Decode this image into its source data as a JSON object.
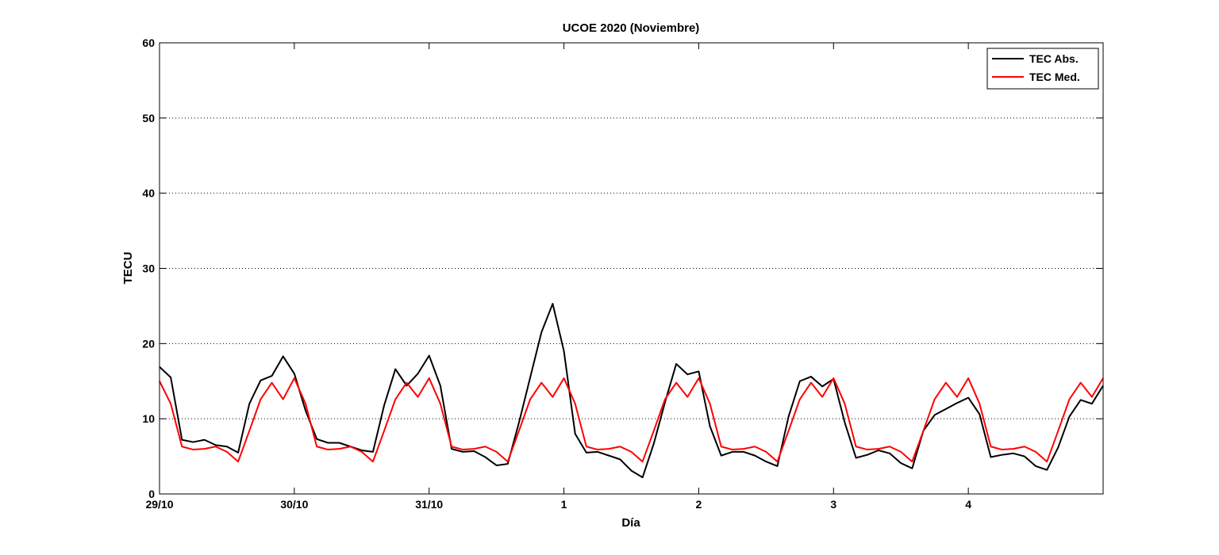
{
  "chart_data": {
    "type": "line",
    "title": "UCOE 2020 (Noviembre)",
    "xlabel": "Día",
    "ylabel": "TECU",
    "ylim": [
      0,
      60
    ],
    "xlim": [
      0,
      7
    ],
    "y_ticks": [
      0,
      10,
      20,
      30,
      40,
      50,
      60
    ],
    "x_ticks": [
      {
        "value": 0,
        "label": "29/10"
      },
      {
        "value": 1,
        "label": "30/10"
      },
      {
        "value": 2,
        "label": "31/10"
      },
      {
        "value": 3,
        "label": "1"
      },
      {
        "value": 4,
        "label": "2"
      },
      {
        "value": 5,
        "label": "3"
      },
      {
        "value": 6,
        "label": "4"
      }
    ],
    "grid": "horizontal dotted",
    "legend_position": "top-right",
    "x_step": 0.083333,
    "series": [
      {
        "name": "TEC Abs.",
        "color": "#000000",
        "values": [
          16.9,
          15.5,
          7.2,
          6.9,
          7.2,
          6.5,
          6.3,
          5.5,
          12.0,
          15.1,
          15.7,
          18.3,
          16.0,
          11.1,
          7.3,
          6.8,
          6.8,
          6.3,
          5.8,
          5.6,
          11.8,
          16.6,
          14.4,
          16.0,
          18.4,
          14.4,
          6.0,
          5.6,
          5.7,
          4.9,
          3.8,
          4.0,
          9.5,
          15.5,
          21.5,
          25.3,
          19.0,
          8.0,
          5.5,
          5.6,
          5.1,
          4.6,
          3.1,
          2.2,
          6.7,
          12.2,
          17.3,
          15.9,
          16.3,
          9.0,
          5.1,
          5.6,
          5.6,
          5.1,
          4.3,
          3.7,
          10.3,
          15.0,
          15.6,
          14.3,
          15.3,
          9.5,
          4.8,
          5.2,
          5.8,
          5.4,
          4.1,
          3.4,
          8.4,
          10.5,
          11.3,
          12.1,
          12.8,
          10.6,
          4.9,
          5.2,
          5.4,
          5.0,
          3.7,
          3.2,
          6.2,
          10.3,
          12.5,
          12.0,
          14.4
        ]
      },
      {
        "name": "TEC Med.",
        "color": "#ff0000",
        "values": [
          15.0,
          12.0,
          6.3,
          5.9,
          6.0,
          6.3,
          5.6,
          4.3,
          8.4,
          12.6,
          14.8,
          12.6,
          15.4,
          12.0,
          6.3,
          5.9,
          6.0,
          6.3,
          5.6,
          4.3,
          8.4,
          12.6,
          14.8,
          12.9,
          15.4,
          12.0,
          6.3,
          5.9,
          6.0,
          6.3,
          5.6,
          4.3,
          8.4,
          12.6,
          14.8,
          12.9,
          15.4,
          12.0,
          6.3,
          5.9,
          6.0,
          6.3,
          5.6,
          4.3,
          8.4,
          12.6,
          14.8,
          12.9,
          15.4,
          12.0,
          6.3,
          5.9,
          6.0,
          6.3,
          5.6,
          4.3,
          8.4,
          12.6,
          14.8,
          12.9,
          15.4,
          12.0,
          6.3,
          5.9,
          6.0,
          6.3,
          5.6,
          4.3,
          8.4,
          12.6,
          14.8,
          12.9,
          15.4,
          12.0,
          6.3,
          5.9,
          6.0,
          6.3,
          5.6,
          4.3,
          8.4,
          12.6,
          14.8,
          12.9,
          15.4
        ]
      }
    ]
  }
}
